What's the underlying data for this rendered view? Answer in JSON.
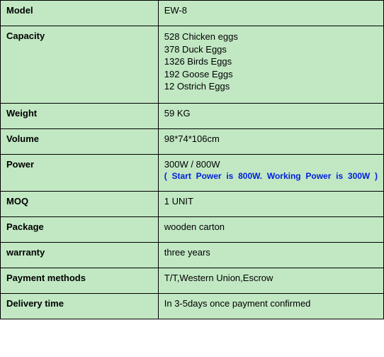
{
  "table": {
    "background_color": "#c1e8c3",
    "border_color": "#000000",
    "note_color": "#0020dd",
    "rows": [
      {
        "label": "Model",
        "value": "EW-8"
      },
      {
        "label": "Capacity",
        "value_lines": [
          "528 Chicken eggs",
          "378 Duck Eggs",
          "1326 Birds Eggs",
          "192 Goose Eggs",
          "12 Ostrich Eggs"
        ]
      },
      {
        "label": "Weight",
        "value": "59 KG"
      },
      {
        "label": "Volume",
        "value": "98*74*106cm"
      },
      {
        "label": "Power",
        "value": "300W / 800W",
        "note": "( Start Power is 800W. Working Power is 300W )"
      },
      {
        "label": "MOQ",
        "value": "1 UNIT"
      },
      {
        "label": "Package",
        "value": "wooden carton"
      },
      {
        "label": "warranty",
        "value": "three years"
      },
      {
        "label": "Payment methods",
        "value": "T/T,Western Union,Escrow"
      },
      {
        "label": "Delivery time",
        "value": "In 3-5days once payment confirmed"
      }
    ]
  }
}
